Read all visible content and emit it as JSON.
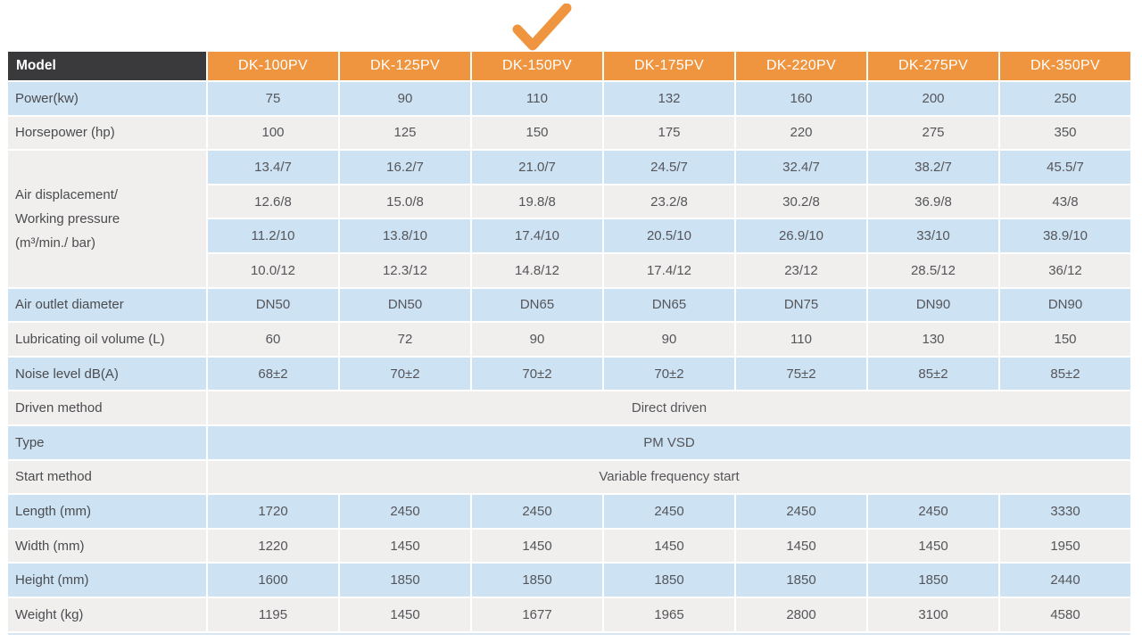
{
  "colors": {
    "accent_orange": "#f0953f",
    "header_dark": "#3a393b",
    "row_blue": "#cde2f3",
    "row_gray": "#f0efee",
    "checkmark_orange": "#f0953f"
  },
  "checkmark": {
    "icon": "check-icon",
    "marked_column": "DK-150PV"
  },
  "table": {
    "header": {
      "model_label": "Model",
      "columns": [
        "DK-100PV",
        "DK-125PV",
        "DK-150PV",
        "DK-175PV",
        "DK-220PV",
        "DK-275PV",
        "DK-350PV"
      ]
    },
    "rows": [
      {
        "type": "simple",
        "label": "Power(kw)",
        "values": [
          "75",
          "90",
          "110",
          "132",
          "160",
          "200",
          "250"
        ]
      },
      {
        "type": "simple",
        "label": "Horsepower (hp)",
        "values": [
          "100",
          "125",
          "150",
          "175",
          "220",
          "275",
          "350"
        ]
      },
      {
        "type": "group",
        "label_lines": [
          "Air displacement/",
          "Working pressure",
          "(m³/min./ bar)"
        ],
        "sub_rows": [
          [
            "13.4/7",
            "16.2/7",
            "21.0/7",
            "24.5/7",
            "32.4/7",
            "38.2/7",
            "45.5/7"
          ],
          [
            "12.6/8",
            "15.0/8",
            "19.8/8",
            "23.2/8",
            "30.2/8",
            "36.9/8",
            "43/8"
          ],
          [
            "11.2/10",
            "13.8/10",
            "17.4/10",
            "20.5/10",
            "26.9/10",
            "33/10",
            "38.9/10"
          ],
          [
            "10.0/12",
            "12.3/12",
            "14.8/12",
            "17.4/12",
            "23/12",
            "28.5/12",
            "36/12"
          ]
        ]
      },
      {
        "type": "simple",
        "label": "Air outlet diameter",
        "values": [
          "DN50",
          "DN50",
          "DN65",
          "DN65",
          "DN75",
          "DN90",
          "DN90"
        ]
      },
      {
        "type": "simple",
        "label": "Lubricating oil volume (L)",
        "values": [
          "60",
          "72",
          "90",
          "90",
          "110",
          "130",
          "150"
        ]
      },
      {
        "type": "simple",
        "label": "Noise level dB(A)",
        "values": [
          "68±2",
          "70±2",
          "70±2",
          "70±2",
          "75±2",
          "85±2",
          "85±2"
        ]
      },
      {
        "type": "merged",
        "label": "Driven method",
        "value": "Direct driven"
      },
      {
        "type": "merged",
        "label": "Type",
        "value": "PM VSD"
      },
      {
        "type": "merged",
        "label": "Start method",
        "value": "Variable frequency start"
      },
      {
        "type": "simple",
        "label": "Length (mm)",
        "values": [
          "1720",
          "2450",
          "2450",
          "2450",
          "2450",
          "2450",
          "3330"
        ]
      },
      {
        "type": "simple",
        "label": "Width (mm)",
        "values": [
          "1220",
          "1450",
          "1450",
          "1450",
          "1450",
          "1450",
          "1950"
        ]
      },
      {
        "type": "simple",
        "label": "Height (mm)",
        "values": [
          "1600",
          "1850",
          "1850",
          "1850",
          "1850",
          "1850",
          "2440"
        ]
      },
      {
        "type": "simple",
        "label": "Weight (kg)",
        "values": [
          "1195",
          "1450",
          "1677",
          "1965",
          "2800",
          "3100",
          "4580"
        ]
      }
    ]
  }
}
